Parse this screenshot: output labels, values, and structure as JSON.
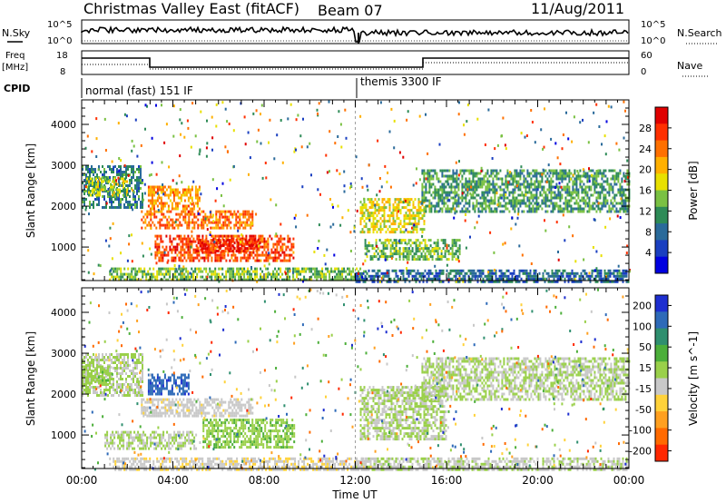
{
  "header": {
    "title": "Christmas Valley East (fitACF)",
    "beam": "Beam 07",
    "date": "11/Aug/2011"
  },
  "aux_panel": {
    "nsky_label": "N.Sky",
    "nsky_top": "10^5",
    "nsky_bottom": "10^0",
    "nsearch_label": "N.Search",
    "nsearch_top": "10^5",
    "nsearch_bottom": "10^0",
    "freq_label": "Freq",
    "freq_unit": "[MHz]",
    "freq_top": "18",
    "freq_bottom": "8",
    "nave_label": "Nave",
    "nave_top": "60",
    "nave_bottom": "0",
    "cpid_label": "CPID",
    "cpid_mode_1": "normal (fast) 151 IF",
    "cpid_mode_2": "themis 3300 IF"
  },
  "axes": {
    "ylabel": "Slant Range [km]",
    "xlabel": "Time UT",
    "yticks": [
      "4000",
      "3000",
      "2000",
      "1000"
    ],
    "xticks": [
      "00:00",
      "04:00",
      "08:00",
      "12:00",
      "16:00",
      "20:00",
      "00:00"
    ]
  },
  "colorbars": {
    "power": {
      "label": "Power [dB]",
      "ticks": [
        "28",
        "24",
        "20",
        "16",
        "12",
        "8",
        "4"
      ],
      "colors": [
        "#0000e0",
        "#1a3fc0",
        "#2a6a9a",
        "#2e8b57",
        "#7ac143",
        "#e8e000",
        "#ffb000",
        "#ff7000",
        "#ff3000",
        "#e00000"
      ]
    },
    "velocity": {
      "label": "Velocity [m s^-1]",
      "ticks": [
        "200",
        "100",
        "50",
        "15",
        "-15",
        "-50",
        "-100",
        "-200"
      ],
      "colors": [
        "#1e2fd0",
        "#2e6ab8",
        "#2f8f6f",
        "#4caf3a",
        "#9ad04a",
        "#c8c8c8",
        "#ffd23a",
        "#ffa020",
        "#ff6a00",
        "#ff2800"
      ]
    }
  },
  "chart_data": [
    {
      "type": "heatmap",
      "title": "Power",
      "xlabel": "Time UT",
      "ylabel": "Slant Range [km]",
      "xlim": [
        0,
        24
      ],
      "ylim": [
        180,
        4600
      ],
      "colorbar_label": "Power [dB]",
      "regions": [
        {
          "t": [
            0.0,
            2.7
          ],
          "r": [
            2000,
            3000
          ],
          "v": 10
        },
        {
          "t": [
            0.2,
            2.0
          ],
          "r": [
            2300,
            2700
          ],
          "v": 16
        },
        {
          "t": [
            2.9,
            5.2
          ],
          "r": [
            1950,
            2500
          ],
          "v": 22
        },
        {
          "t": [
            2.6,
            7.5
          ],
          "r": [
            1450,
            1900
          ],
          "v": 24
        },
        {
          "t": [
            3.2,
            9.3
          ],
          "r": [
            700,
            1300
          ],
          "v": 26
        },
        {
          "t": [
            5.0,
            7.8
          ],
          "r": [
            900,
            1200
          ],
          "v": 28
        },
        {
          "t": [
            1.2,
            12.5
          ],
          "r": [
            180,
            500
          ],
          "v": 14
        },
        {
          "t": [
            12.2,
            15.0
          ],
          "r": [
            1400,
            2200
          ],
          "v": 18
        },
        {
          "t": [
            12.4,
            16.6
          ],
          "r": [
            700,
            1200
          ],
          "v": 14
        },
        {
          "t": [
            14.9,
            24.0
          ],
          "r": [
            1900,
            2900
          ],
          "v": 12
        },
        {
          "t": [
            12.0,
            24.0
          ],
          "r": [
            180,
            450
          ],
          "v": 8
        }
      ]
    },
    {
      "type": "heatmap",
      "title": "Velocity",
      "xlabel": "Time UT",
      "ylabel": "Slant Range [km]",
      "xlim": [
        0,
        24
      ],
      "ylim": [
        180,
        4600
      ],
      "colorbar_label": "Velocity [m s^-1]",
      "regions": [
        {
          "t": [
            0.0,
            2.7
          ],
          "r": [
            2000,
            3000
          ],
          "v": 0
        },
        {
          "t": [
            0.0,
            1.2
          ],
          "r": [
            2300,
            2700
          ],
          "v": 30
        },
        {
          "t": [
            2.9,
            4.7
          ],
          "r": [
            2000,
            2500
          ],
          "v": 200
        },
        {
          "t": [
            2.6,
            7.5
          ],
          "r": [
            1450,
            1900
          ],
          "v": -30
        },
        {
          "t": [
            5.3,
            9.3
          ],
          "r": [
            700,
            1400
          ],
          "v": 40
        },
        {
          "t": [
            1.0,
            5.0
          ],
          "r": [
            700,
            1100
          ],
          "v": 0
        },
        {
          "t": [
            1.2,
            12.5
          ],
          "r": [
            180,
            450
          ],
          "v": -40
        },
        {
          "t": [
            12.2,
            16.0
          ],
          "r": [
            900,
            2200
          ],
          "v": 0
        },
        {
          "t": [
            14.9,
            24.0
          ],
          "r": [
            1900,
            2900
          ],
          "v": 0
        },
        {
          "t": [
            12.0,
            24.0
          ],
          "r": [
            180,
            450
          ],
          "v": -10
        }
      ]
    }
  ]
}
